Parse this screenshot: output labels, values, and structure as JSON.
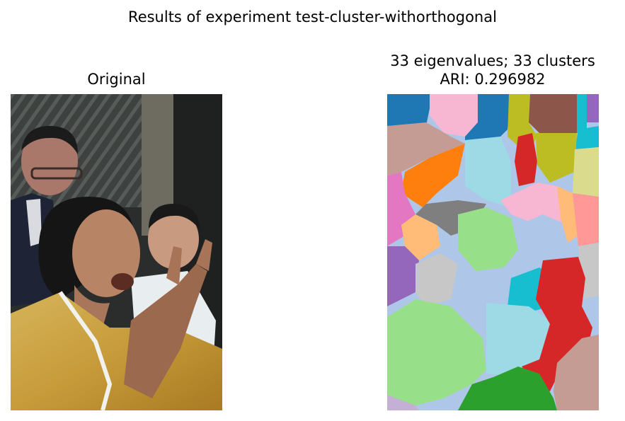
{
  "figure": {
    "suptitle": "Results of experiment test-cluster-withorthogonal",
    "left_title": "Original",
    "right_title_line1": "33 eigenvalues; 33 clusters",
    "right_title_line2": "ARI: 0.296982"
  },
  "images": {
    "original": "photograph of a woman in a yellow silk jacket gesturing with her hands, two people behind her",
    "segmentation": "cluster label map colored with a tab20-style palette"
  },
  "colors": {
    "blue": "#1f77b4",
    "lightblue": "#aec7e8",
    "orange": "#ff7f0e",
    "lightorange": "#ffbb78",
    "green": "#2ca02c",
    "lightgreen": "#98df8a",
    "red": "#d62728",
    "pink": "#ff9896",
    "purple": "#9467bd",
    "lavender": "#c5b0d5",
    "brown": "#8c564b",
    "rosybrown": "#c49c94",
    "magenta": "#e377c2",
    "lightpink": "#f7b6d2",
    "gray": "#7f7f7f",
    "lightgray": "#c7c7c7",
    "olive": "#bcbd22",
    "khaki": "#dbdb8d",
    "cyan": "#17becf",
    "lightcyan": "#9edae5"
  }
}
